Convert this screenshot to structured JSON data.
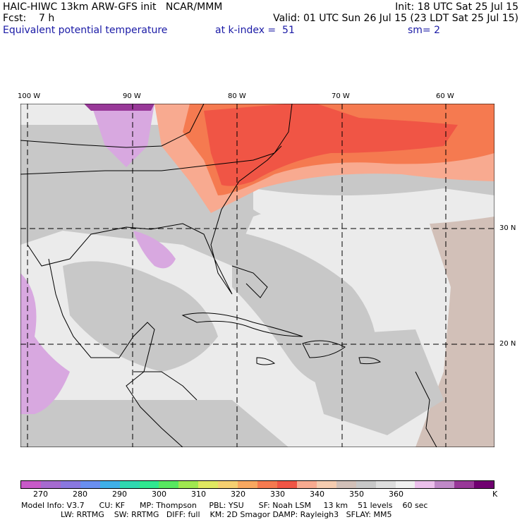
{
  "header": {
    "line1_left": "HAIC-HIWC 13km ARW-GFS init   NCAR/MMM",
    "line1_right": "Init: 18 UTC Sat 25 Jul 15",
    "line2_left": "Fcst:    7 h",
    "line2_right": "Valid: 01 UTC Sun 26 Jul 15 (23 LDT Sat 25 Jul 15)",
    "line3_left": "Equivalent potential temperature",
    "line3_mid": "at k-index =  51",
    "line3_right": "sm= 2"
  },
  "grid_labels": {
    "lon": [
      "100 W",
      "90 W",
      "80 W",
      "70 W",
      "60 W"
    ],
    "lat": [
      "30 N",
      "20 N"
    ]
  },
  "colorbar": {
    "colors": [
      "#c85ac8",
      "#a66bd0",
      "#8a78e0",
      "#6a8ff0",
      "#3fb0e8",
      "#30d8b0",
      "#30e890",
      "#58e860",
      "#a0e850",
      "#e0e860",
      "#f5d070",
      "#f8a860",
      "#f57a50",
      "#f05545",
      "#f8aa90",
      "#f5ccb0",
      "#d2c0b8",
      "#c8c8c8",
      "#dddddd",
      "#f0f0f0",
      "#ecc0ec",
      "#c089c8",
      "#983898",
      "#700070"
    ],
    "labels": [
      "270",
      "280",
      "290",
      "300",
      "310",
      "320",
      "330",
      "340",
      "350",
      "360",
      "K"
    ]
  },
  "footer": {
    "line1": "Model Info: V3.7      CU: KF      MP: Thompson     PBL: YSU      SF: Noah LSM     13 km    51 levels    60 sec",
    "line2": "                LW: RRTMG    SW: RRTMG   DIFF: full    KM: 2D Smagor DAMP: Rayleigh3   SFLAY: MM5"
  },
  "field_colors": {
    "ocean_light": "#ebebeb",
    "gray": "#c8c8c8",
    "tan": "#d2c0b8",
    "pink": "#f8aa90",
    "salmon": "#f05545",
    "red": "#f57a50",
    "lavender": "#d8a8e0",
    "purple": "#983898"
  }
}
